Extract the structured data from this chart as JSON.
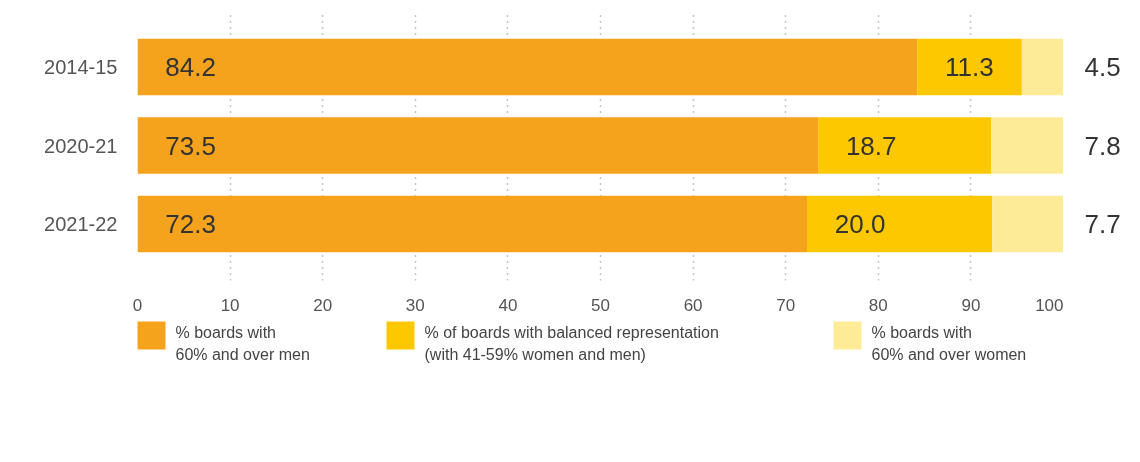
{
  "chart_data": {
    "type": "bar",
    "orientation": "horizontal",
    "stacked": true,
    "categories": [
      "2014-15",
      "2020-21",
      "2021-22"
    ],
    "series": [
      {
        "name": "% boards with\n60% and over men",
        "color": "#f5a31c",
        "values": [
          84.2,
          73.5,
          72.3
        ],
        "value_labels": [
          "84.2",
          "73.5",
          "72.3"
        ]
      },
      {
        "name": "% of boards with balanced representation\n(with 41-59% women and men)",
        "color": "#fdc800",
        "values": [
          11.3,
          18.7,
          20.0
        ],
        "value_labels": [
          "11.3",
          "18.7",
          "20.0"
        ]
      },
      {
        "name": "% boards with\n60% and over women",
        "color": "#feeb98",
        "values": [
          4.5,
          7.8,
          7.7
        ],
        "value_labels": [
          "4.5",
          "7.8",
          "7.7"
        ]
      }
    ],
    "xlim": [
      0,
      100
    ],
    "xticks": [
      0,
      10,
      20,
      30,
      40,
      50,
      60,
      70,
      80,
      90,
      100
    ],
    "grid": "x",
    "legend": "bottom"
  }
}
